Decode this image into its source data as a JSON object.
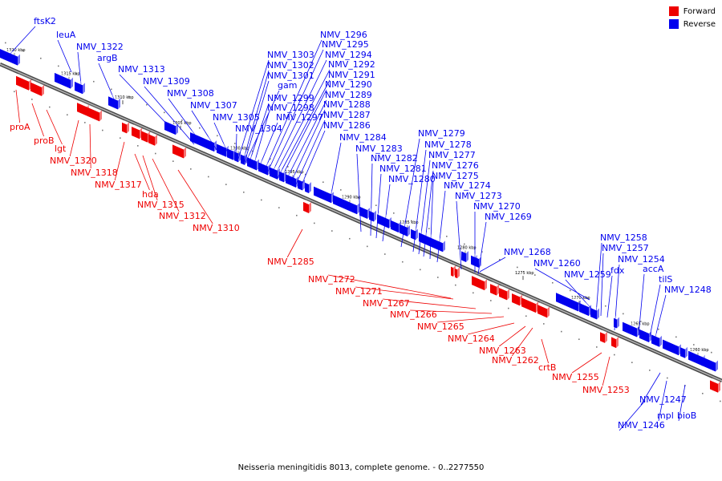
{
  "colors": {
    "forward": "#ee0000",
    "reverse": "#0000ee",
    "backbone": "#808080"
  },
  "legend": {
    "forward": "Forward",
    "reverse": "Reverse"
  },
  "caption": "Neisseria meningitidis 8013, complete genome. - 0..2277550",
  "ticks": [
    "1320 kbp",
    "1315 kbp",
    "1310 kbp",
    "1305 kbp",
    "1300 kbp",
    "1295 kbp",
    "1290 kbp",
    "1285 kbp",
    "1280 kbp",
    "1275 kbp",
    "1270 kbp",
    "1265 kbp",
    "1260 kbp"
  ],
  "reverse_labels": [
    "ftsK2",
    "leuA",
    "NMV_1322",
    "argB",
    "NMV_1313",
    "NMV_1309",
    "NMV_1308",
    "NMV_1307",
    "NMV_1305",
    "NMV_1304",
    "NMV_1303",
    "NMV_1302",
    "NMV_1301",
    "gam",
    "NMV_1299",
    "NMV_1298",
    "NMV_1297",
    "NMV_1296",
    "NMV_1295",
    "NMV_1294",
    "NMV_1292",
    "NMV_1291",
    "NMV_1290",
    "NMV_1289",
    "NMV_1288",
    "NMV_1287",
    "NMV_1286",
    "NMV_1284",
    "NMV_1283",
    "NMV_1282",
    "NMV_1281",
    "NMV_1280",
    "NMV_1279",
    "NMV_1278",
    "NMV_1277",
    "NMV_1276",
    "NMV_1275",
    "NMV_1274",
    "NMV_1273",
    "NMV_1270",
    "NMV_1269",
    "NMV_1268",
    "NMV_1260",
    "NMV_1259",
    "NMV_1258",
    "NMV_1257",
    "NMV_1254",
    "fdx",
    "accA",
    "tilS",
    "NMV_1248",
    "NMV_1247",
    "NMV_1246",
    "mpl",
    "bioB"
  ],
  "forward_labels": [
    "proA",
    "proB",
    "lgt",
    "NMV_1320",
    "NMV_1318",
    "NMV_1317",
    "hda",
    "NMV_1315",
    "NMV_1312",
    "NMV_1310",
    "NMV_1285",
    "NMV_1272",
    "NMV_1271",
    "NMV_1267",
    "NMV_1266",
    "NMV_1265",
    "NMV_1264",
    "NMV_1263",
    "NMV_1262",
    "crtB",
    "NMV_1255",
    "NMV_1253"
  ]
}
